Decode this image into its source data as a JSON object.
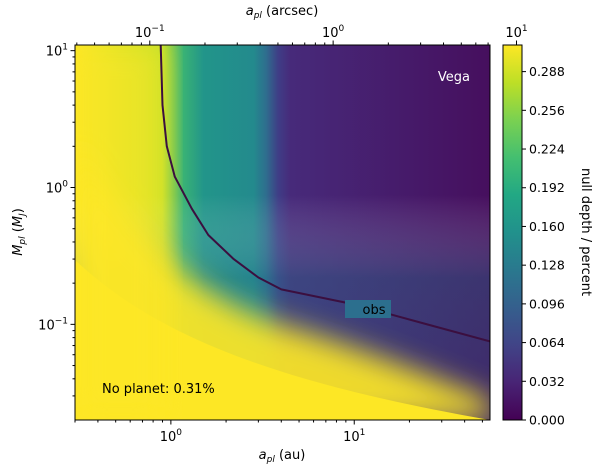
{
  "chart_data": {
    "type": "heatmap",
    "title": "",
    "xlabel": "a_pl (au)",
    "xlabel_top": "a_pl (arcsec)",
    "ylabel": "M_pl (M_J)",
    "colorbar_label": "null depth / percent",
    "x_scale": "log",
    "y_scale": "log",
    "xlim": [
      0.3,
      55
    ],
    "ylim": [
      0.02,
      11
    ],
    "xlim_arcsec": [
      0.0391,
      7.17
    ],
    "x_ticks": [
      {
        "value": 1,
        "label": "10^0"
      },
      {
        "value": 10,
        "label": "10^1"
      }
    ],
    "x_ticks_top": [
      {
        "value": 0.1,
        "label": "10^-1"
      },
      {
        "value": 1,
        "label": "10^0"
      },
      {
        "value": 10,
        "label": "10^1"
      }
    ],
    "y_ticks": [
      {
        "value": 0.1,
        "label": "10^-1"
      },
      {
        "value": 1,
        "label": "10^0"
      },
      {
        "value": 10,
        "label": "10^1"
      }
    ],
    "colorbar": {
      "colormap": "viridis",
      "range": [
        0.0,
        0.31
      ],
      "ticks": [
        "0.000",
        "0.032",
        "0.064",
        "0.096",
        "0.128",
        "0.160",
        "0.192",
        "0.224",
        "0.256",
        "0.288"
      ]
    },
    "contour": {
      "label": "obs",
      "color": "#3b0f3f",
      "points": [
        [
          0.88,
          11
        ],
        [
          0.9,
          4
        ],
        [
          0.95,
          2
        ],
        [
          1.05,
          1.2
        ],
        [
          1.3,
          0.7
        ],
        [
          1.6,
          0.45
        ],
        [
          2.2,
          0.3
        ],
        [
          3.0,
          0.22
        ],
        [
          4.0,
          0.18
        ],
        [
          10,
          0.14
        ],
        [
          25,
          0.1
        ],
        [
          55,
          0.075
        ]
      ]
    },
    "annotations": [
      {
        "text": "Vega",
        "x": 30,
        "y": 6.5,
        "color": "#ffffff"
      },
      {
        "text": "No planet: 0.31%",
        "x": 0.39,
        "y": 0.03,
        "color": "#000000"
      }
    ]
  }
}
